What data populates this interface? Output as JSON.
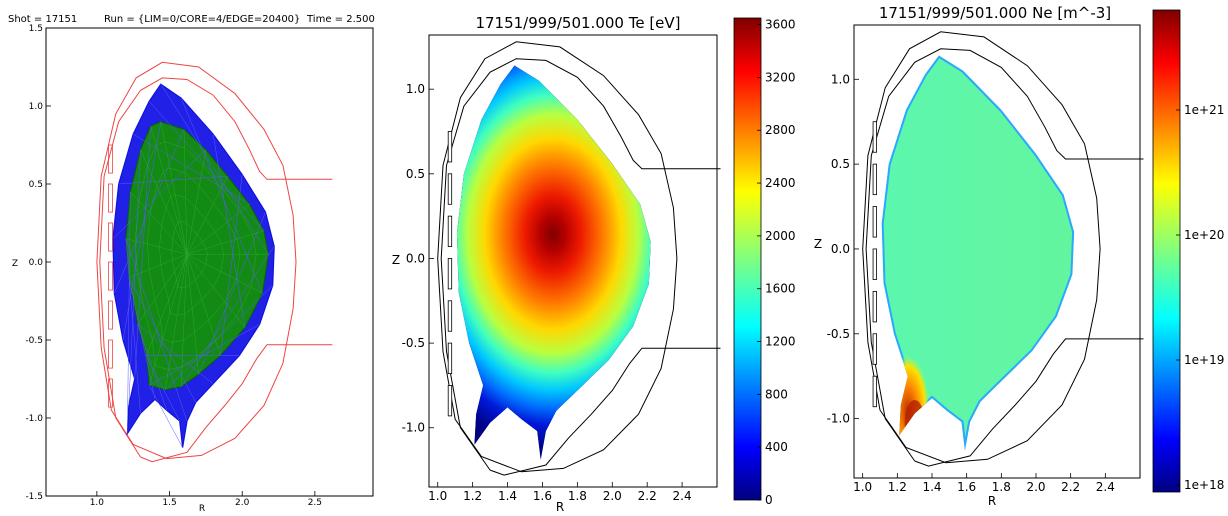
{
  "chart_data": [
    {
      "type": "mesh",
      "header": {
        "shot": "Shot = 17151",
        "run": "Run = {LIM=0/CORE=4/EDGE=20400}",
        "time": "Time =  2.500"
      },
      "xlabel": "R",
      "ylabel": "Z",
      "xlim": [
        0.65,
        2.9
      ],
      "ylim": [
        -1.5,
        1.5
      ],
      "xticks": [
        "1.0",
        "1.5",
        "2.0",
        "2.5"
      ],
      "yticks": [
        "1.5",
        "1.0",
        "0.5",
        "0.0",
        "-0.5",
        "-1.0",
        "-1.5"
      ],
      "grid": false,
      "colors": {
        "core_mesh": "#1a8a1a",
        "edge_mesh": "#1111dd",
        "vessel": "#ee4444"
      }
    },
    {
      "type": "heatmap",
      "title": "17151/999/501.000    Te [eV]",
      "xlabel": "R",
      "ylabel": "Z",
      "xlim": [
        0.95,
        2.6
      ],
      "ylim": [
        -1.35,
        1.32
      ],
      "xticks": [
        "1.0",
        "1.2",
        "1.4",
        "1.6",
        "1.8",
        "2.0",
        "2.2",
        "2.4"
      ],
      "yticks": [
        "1.0",
        "0.5",
        "0.0",
        "-0.5",
        "-1.0"
      ],
      "colorbar": {
        "scale": "linear",
        "min": 0,
        "max": 3650,
        "ticks": [
          "0",
          "400",
          "800",
          "1200",
          "1600",
          "2000",
          "2400",
          "2800",
          "3200",
          "3600"
        ]
      },
      "peak": {
        "R": 1.72,
        "Z": 0.12,
        "value": 3650
      },
      "edge_value": 0,
      "colormap": "jet",
      "grid": false
    },
    {
      "type": "heatmap",
      "title": "17151/999/501.000    Ne [m^-3]",
      "xlabel": "R",
      "ylabel": "Z",
      "xlim": [
        0.95,
        2.6
      ],
      "ylim": [
        -1.35,
        1.32
      ],
      "xticks": [
        "1.0",
        "1.2",
        "1.4",
        "1.6",
        "1.8",
        "2.0",
        "2.2",
        "2.4"
      ],
      "yticks": [
        "1.0",
        "0.5",
        "0.0",
        "-0.5",
        "-1.0"
      ],
      "colorbar": {
        "scale": "log",
        "ticks": [
          "1e+18",
          "1e+19",
          "1e+20",
          "1e+21"
        ]
      },
      "core_value": "≈ 5e+19",
      "divertor_value": "≈ 1e+21",
      "colormap": "jet",
      "grid": false
    }
  ]
}
